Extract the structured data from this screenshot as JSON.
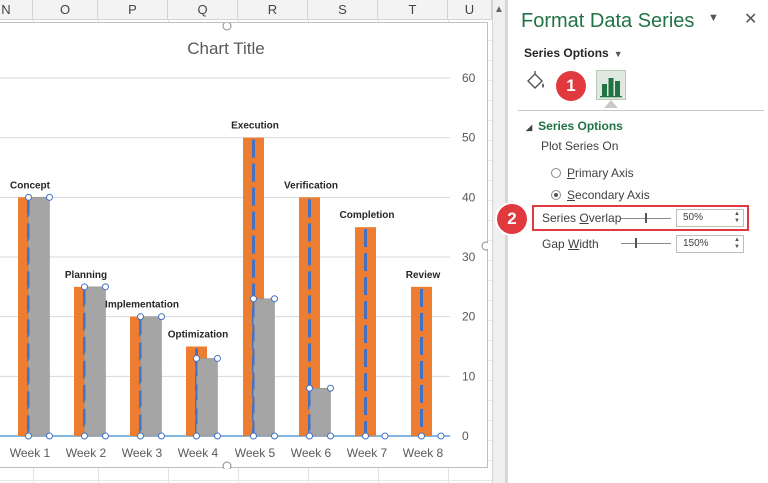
{
  "sheet": {
    "columns": [
      "N",
      "O",
      "P",
      "Q",
      "R",
      "S",
      "T",
      "U"
    ]
  },
  "chart": {
    "title": "Chart Title",
    "selection_color": "#4472c4",
    "colors": {
      "orange": "#ed7d31",
      "gray": "#a5a5a5",
      "blue_dash": "#4472c4",
      "axis_line": "#5b9bd5"
    }
  },
  "chart_data": {
    "type": "bar",
    "title": "Chart Title",
    "categories": [
      "Week 1",
      "Week 2",
      "Week 3",
      "Week 4",
      "Week 5",
      "Week 6",
      "Week 7",
      "Week 8"
    ],
    "series": [
      {
        "values": [
          40,
          25,
          20,
          15,
          50,
          40,
          35,
          25
        ]
      },
      {
        "values": [
          40,
          25,
          20,
          13,
          23,
          8,
          0,
          0
        ]
      }
    ],
    "data_labels": [
      "Concept",
      "Planning",
      "Implementation",
      "Optimization",
      "Execution",
      "Verification",
      "Completion",
      "Review"
    ],
    "y_axis": {
      "position": "right",
      "ticks": [
        0,
        10,
        20,
        30,
        40,
        50,
        60
      ],
      "ylim": [
        0,
        60
      ]
    },
    "grid": true
  },
  "pane": {
    "title": "Format Data Series",
    "menu_label": "Series Options",
    "section_label": "Series Options",
    "plot_on_label": "Plot Series On",
    "primary_axis": {
      "label_u": "P",
      "label_rest": "rimary Axis",
      "checked": false
    },
    "secondary_axis": {
      "label_u": "S",
      "label_rest": "econdary Axis",
      "checked": true
    },
    "overlap": {
      "label_pre": "Series ",
      "label_u": "O",
      "label_rest": "verlap",
      "value": "50%",
      "level": 0.5
    },
    "gap": {
      "label_pre": "Gap ",
      "label_u": "W",
      "label_rest": "idth",
      "value": "150%",
      "level": 0.3
    },
    "badges": {
      "one": "1",
      "two": "2"
    },
    "icons": {
      "fill": "paint-bucket-icon",
      "series": "bar-chart-icon",
      "close": "close-icon",
      "dropdown": "dropdown-arrow-icon"
    }
  }
}
